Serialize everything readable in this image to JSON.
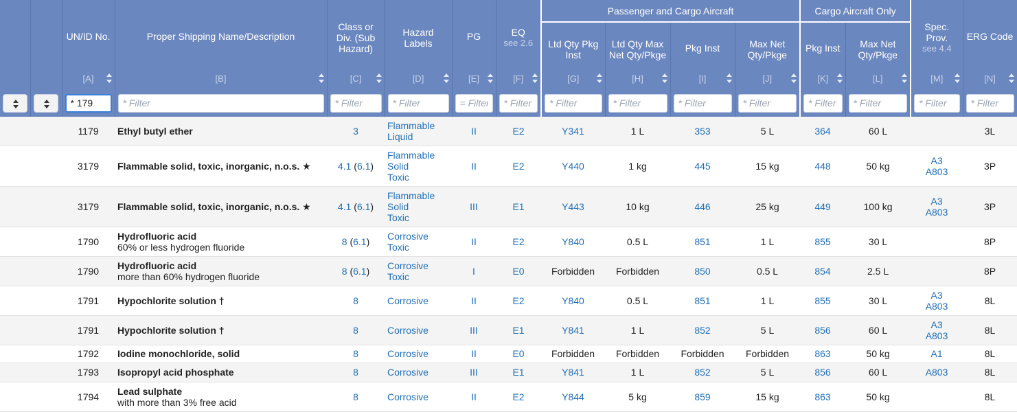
{
  "headers": {
    "unid": "UN/ID No.",
    "psn": "Proper Shipping Name/Description",
    "class": "Class or Div. (Sub Hazard)",
    "labels": "Hazard Labels",
    "pg": "PG",
    "eq": "EQ",
    "eq_sub": "see 2.6",
    "group_pax": "Passenger and Cargo Aircraft",
    "group_cao": "Cargo Aircraft Only",
    "ltd_pi": "Ltd Qty Pkg Inst",
    "ltd_max": "Ltd Qty Max Net Qty/Pkge",
    "pax_pi": "Pkg Inst",
    "pax_max": "Max Net Qty/Pkge",
    "cao_pi": "Pkg Inst",
    "cao_max": "Max Net Qty/Pkge",
    "sp": "Spec. Prov.",
    "sp_sub": "see 4.4",
    "erg": "ERG Code",
    "codes": [
      "[A]",
      "[B]",
      "[C]",
      "[D]",
      "[E]",
      "[F]",
      "[G]",
      "[H]",
      "[I]",
      "[J]",
      "[K]",
      "[L]",
      "[M]",
      "[N]"
    ]
  },
  "filters": {
    "placeholder": "* Filter",
    "pg_placeholder": "= Filter",
    "unid_value": "* 179"
  },
  "rows": [
    {
      "un": "1179",
      "name": "Ethyl butyl ether",
      "desc": "",
      "cls": "3",
      "sub": "",
      "labels": [
        "Flammable",
        "Liquid"
      ],
      "pg": "II",
      "eq": "E2",
      "ltd_pi": "Y341",
      "ltd_max": "1 L",
      "pax_pi": "353",
      "pax_max": "5 L",
      "cao_pi": "364",
      "cao_max": "60 L",
      "sp": [],
      "erg": "3L"
    },
    {
      "un": "3179",
      "name": "Flammable solid, toxic, inorganic, n.o.s. ★",
      "desc": "",
      "cls": "4.1",
      "sub": "6.1",
      "labels": [
        "Flammable",
        "Solid",
        "Toxic"
      ],
      "pg": "II",
      "eq": "E2",
      "ltd_pi": "Y440",
      "ltd_max": "1 kg",
      "pax_pi": "445",
      "pax_max": "15 kg",
      "cao_pi": "448",
      "cao_max": "50 kg",
      "sp": [
        "A3",
        "A803"
      ],
      "erg": "3P"
    },
    {
      "un": "3179",
      "name": "Flammable solid, toxic, inorganic, n.o.s. ★",
      "desc": "",
      "cls": "4.1",
      "sub": "6.1",
      "labels": [
        "Flammable",
        "Solid",
        "Toxic"
      ],
      "pg": "III",
      "eq": "E1",
      "ltd_pi": "Y443",
      "ltd_max": "10 kg",
      "pax_pi": "446",
      "pax_max": "25 kg",
      "cao_pi": "449",
      "cao_max": "100 kg",
      "sp": [
        "A3",
        "A803"
      ],
      "erg": "3P"
    },
    {
      "un": "1790",
      "name": "Hydrofluoric acid",
      "desc": "60% or less hydrogen fluoride",
      "cls": "8",
      "sub": "6.1",
      "labels": [
        "Corrosive",
        "Toxic"
      ],
      "pg": "II",
      "eq": "E2",
      "ltd_pi": "Y840",
      "ltd_max": "0.5 L",
      "pax_pi": "851",
      "pax_max": "1 L",
      "cao_pi": "855",
      "cao_max": "30 L",
      "sp": [],
      "erg": "8P"
    },
    {
      "un": "1790",
      "name": "Hydrofluoric acid",
      "desc": "more than 60% hydrogen fluoride",
      "cls": "8",
      "sub": "6.1",
      "labels": [
        "Corrosive",
        "Toxic"
      ],
      "pg": "I",
      "eq": "E0",
      "ltd_pi": "Forbidden",
      "ltd_max": "Forbidden",
      "pax_pi": "850",
      "pax_max": "0.5 L",
      "cao_pi": "854",
      "cao_max": "2.5 L",
      "sp": [],
      "erg": "8P"
    },
    {
      "un": "1791",
      "name": "Hypochlorite solution †",
      "desc": "",
      "cls": "8",
      "sub": "",
      "labels": [
        "Corrosive"
      ],
      "pg": "II",
      "eq": "E2",
      "ltd_pi": "Y840",
      "ltd_max": "0.5 L",
      "pax_pi": "851",
      "pax_max": "1 L",
      "cao_pi": "855",
      "cao_max": "30 L",
      "sp": [
        "A3",
        "A803"
      ],
      "erg": "8L"
    },
    {
      "un": "1791",
      "name": "Hypochlorite solution †",
      "desc": "",
      "cls": "8",
      "sub": "",
      "labels": [
        "Corrosive"
      ],
      "pg": "III",
      "eq": "E1",
      "ltd_pi": "Y841",
      "ltd_max": "1 L",
      "pax_pi": "852",
      "pax_max": "5 L",
      "cao_pi": "856",
      "cao_max": "60 L",
      "sp": [
        "A3",
        "A803"
      ],
      "erg": "8L"
    },
    {
      "un": "1792",
      "name": "Iodine monochloride, solid",
      "desc": "",
      "cls": "8",
      "sub": "",
      "labels": [
        "Corrosive"
      ],
      "pg": "II",
      "eq": "E0",
      "ltd_pi": "Forbidden",
      "ltd_max": "Forbidden",
      "pax_pi": "Forbidden",
      "pax_max": "Forbidden",
      "cao_pi": "863",
      "cao_max": "50 kg",
      "sp": [
        "A1"
      ],
      "erg": "8L"
    },
    {
      "un": "1793",
      "name": "Isopropyl acid phosphate",
      "desc": "",
      "cls": "8",
      "sub": "",
      "labels": [
        "Corrosive"
      ],
      "pg": "III",
      "eq": "E1",
      "ltd_pi": "Y841",
      "ltd_max": "1 L",
      "pax_pi": "852",
      "pax_max": "5 L",
      "cao_pi": "856",
      "cao_max": "60 L",
      "sp": [
        "A803"
      ],
      "erg": "8L"
    },
    {
      "un": "1794",
      "name": "Lead sulphate",
      "desc": "with more than 3% free acid",
      "cls": "8",
      "sub": "",
      "labels": [
        "Corrosive"
      ],
      "pg": "II",
      "eq": "E2",
      "ltd_pi": "Y844",
      "ltd_max": "5 kg",
      "pax_pi": "859",
      "pax_max": "15 kg",
      "cao_pi": "863",
      "cao_max": "50 kg",
      "sp": [],
      "erg": "8L"
    }
  ]
}
